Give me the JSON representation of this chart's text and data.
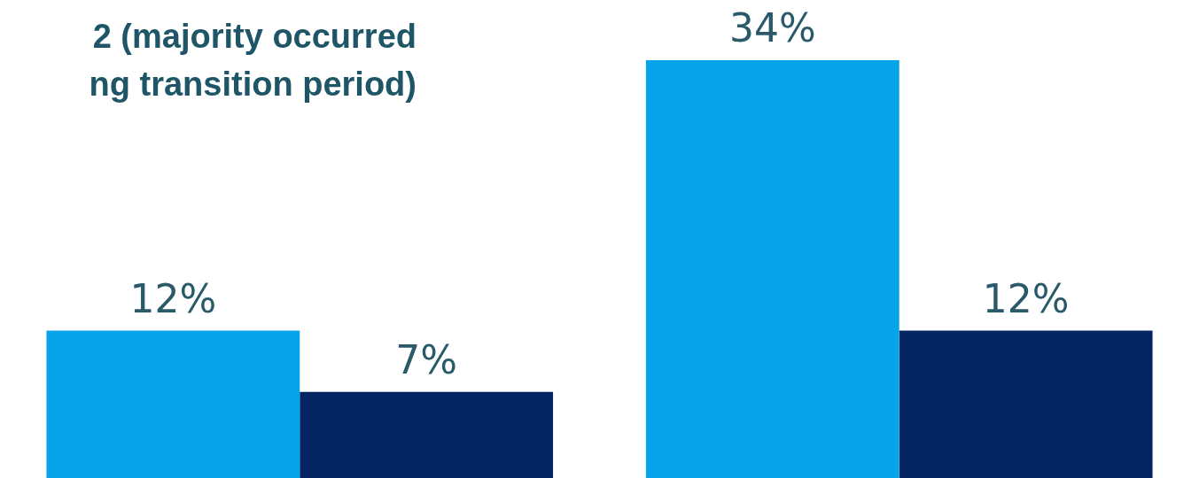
{
  "chart_data": {
    "type": "bar",
    "title": "2 (majority occurred\nng transition period)",
    "categories": [
      null,
      null
    ],
    "series": [
      {
        "color": "#08a4e9",
        "values": [
          12,
          34
        ],
        "value_labels": [
          "12%",
          "34%"
        ]
      },
      {
        "color": "#052462",
        "values": [
          7,
          12
        ],
        "value_labels": [
          "7%",
          "12%"
        ]
      }
    ],
    "legend": false,
    "grid": false
  }
}
